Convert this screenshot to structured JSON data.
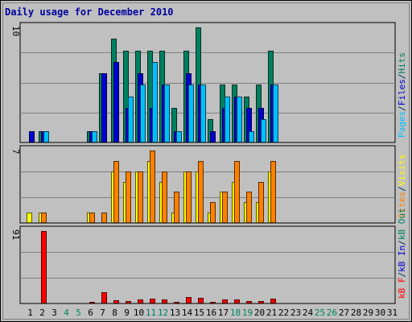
{
  "chart_data": {
    "type": "bar",
    "title": "Daily usage for December 2010",
    "days": [
      "1",
      "2",
      "3",
      "4",
      "5",
      "6",
      "7",
      "8",
      "9",
      "10",
      "11",
      "12",
      "13",
      "14",
      "15",
      "16",
      "17",
      "18",
      "19",
      "20",
      "21",
      "22",
      "23",
      "24",
      "25",
      "26",
      "27",
      "28",
      "29",
      "30",
      "31"
    ],
    "weekend_days": [
      "4",
      "5",
      "11",
      "12",
      "18",
      "19",
      "25",
      "26"
    ],
    "panels": [
      {
        "id": "hits",
        "scale_label": "10",
        "ymax": 10,
        "axis_legend": [
          {
            "text": "Pages",
            "color": "#00c0ff"
          },
          {
            "text": "/",
            "color": "#003060"
          },
          {
            "text": "Files",
            "color": "#0000d0"
          },
          {
            "text": "/",
            "color": "#003060"
          },
          {
            "text": "Hits",
            "color": "#008060"
          }
        ],
        "series": [
          {
            "name": "Hits",
            "color": "#008060",
            "values": [
              0,
              1,
              0,
              0,
              0,
              1,
              6,
              9,
              8,
              8,
              8,
              8,
              3,
              8,
              10,
              2,
              5,
              5,
              4,
              5,
              8,
              0,
              0,
              0,
              0,
              0,
              0,
              0,
              0,
              0,
              0
            ]
          },
          {
            "name": "Files",
            "color": "#0000d0",
            "values": [
              1,
              1,
              0,
              0,
              0,
              1,
              6,
              7,
              3,
              6,
              3,
              5,
              1,
              6,
              5,
              1,
              3,
              4,
              3,
              3,
              5,
              0,
              0,
              0,
              0,
              0,
              0,
              0,
              0,
              0,
              0
            ]
          },
          {
            "name": "Pages",
            "color": "#00c0ff",
            "values": [
              0,
              1,
              0,
              0,
              0,
              1,
              0,
              0,
              4,
              5,
              7,
              5,
              1,
              5,
              5,
              0,
              4,
              4,
              1,
              2,
              5,
              0,
              0,
              0,
              0,
              0,
              0,
              0,
              0,
              0,
              0
            ]
          }
        ]
      },
      {
        "id": "visits",
        "scale_label": "7",
        "ymax": 7,
        "axis_legend": [
          {
            "text": "Sites",
            "color": "#ff8000"
          },
          {
            "text": "/",
            "color": "#003060"
          },
          {
            "text": "Visits",
            "color": "#ffff00"
          }
        ],
        "series": [
          {
            "name": "Visits",
            "color": "#ffff00",
            "values": [
              1,
              1,
              0,
              0,
              0,
              1,
              0,
              5,
              4,
              5,
              6,
              4,
              1,
              5,
              5,
              1,
              3,
              4,
              2,
              2,
              5,
              0,
              0,
              0,
              0,
              0,
              0,
              0,
              0,
              0,
              0
            ]
          },
          {
            "name": "Sites",
            "color": "#ff8000",
            "values": [
              0,
              1,
              0,
              0,
              0,
              1,
              1,
              6,
              5,
              5,
              7,
              5,
              3,
              5,
              6,
              2,
              3,
              6,
              3,
              4,
              6,
              0,
              0,
              0,
              0,
              0,
              0,
              0,
              0,
              0,
              0
            ]
          }
        ]
      },
      {
        "id": "kbytes",
        "scale_label": "91",
        "ymax": 91,
        "axis_legend": [
          {
            "text": "kB F",
            "color": "#ff0000"
          },
          {
            "text": "/",
            "color": "#003060"
          },
          {
            "text": "kB In",
            "color": "#0000d0"
          },
          {
            "text": "/",
            "color": "#003060"
          },
          {
            "text": "kB Out",
            "color": "#008060"
          }
        ],
        "series": [
          {
            "name": "kB F",
            "color": "#ff0000",
            "values": [
              0,
              91,
              0,
              0,
              0,
              2,
              14,
              4,
              3,
              5,
              6,
              5,
              2,
              8,
              7,
              2,
              5,
              5,
              3,
              3,
              6,
              0,
              0,
              0,
              0,
              0,
              0,
              0,
              0,
              0,
              0
            ]
          }
        ]
      }
    ]
  }
}
